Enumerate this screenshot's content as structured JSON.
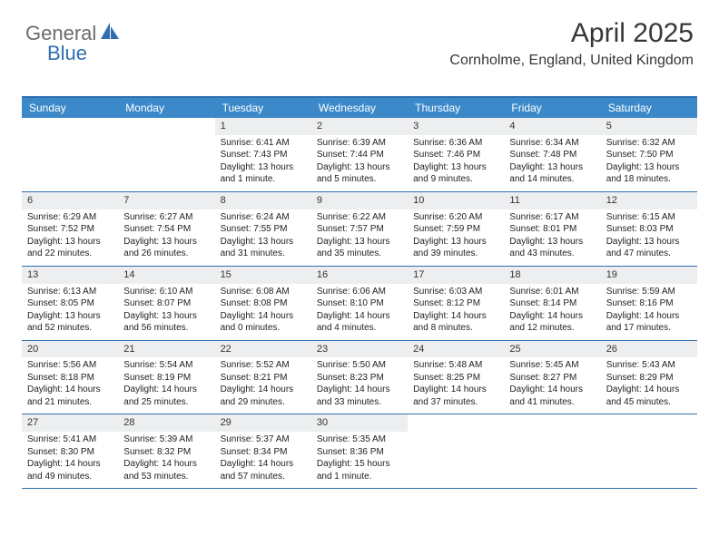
{
  "logo": {
    "part1": "General",
    "part2": "Blue"
  },
  "title": "April 2025",
  "location": "Cornholme, England, United Kingdom",
  "colors": {
    "headerBg": "#3b89c9",
    "borderTop": "#2f6fb0",
    "rowBorder": "#2f6fb0",
    "dayNumBg": "#eceeef",
    "logoGray": "#6b6b6b",
    "logoBlue": "#2f6fb0"
  },
  "dayNames": [
    "Sunday",
    "Monday",
    "Tuesday",
    "Wednesday",
    "Thursday",
    "Friday",
    "Saturday"
  ],
  "weeks": [
    [
      {
        "n": "",
        "empty": true
      },
      {
        "n": "",
        "empty": true
      },
      {
        "n": "1",
        "sunrise": "6:41 AM",
        "sunset": "7:43 PM",
        "daylight": "13 hours and 1 minute."
      },
      {
        "n": "2",
        "sunrise": "6:39 AM",
        "sunset": "7:44 PM",
        "daylight": "13 hours and 5 minutes."
      },
      {
        "n": "3",
        "sunrise": "6:36 AM",
        "sunset": "7:46 PM",
        "daylight": "13 hours and 9 minutes."
      },
      {
        "n": "4",
        "sunrise": "6:34 AM",
        "sunset": "7:48 PM",
        "daylight": "13 hours and 14 minutes."
      },
      {
        "n": "5",
        "sunrise": "6:32 AM",
        "sunset": "7:50 PM",
        "daylight": "13 hours and 18 minutes."
      }
    ],
    [
      {
        "n": "6",
        "sunrise": "6:29 AM",
        "sunset": "7:52 PM",
        "daylight": "13 hours and 22 minutes."
      },
      {
        "n": "7",
        "sunrise": "6:27 AM",
        "sunset": "7:54 PM",
        "daylight": "13 hours and 26 minutes."
      },
      {
        "n": "8",
        "sunrise": "6:24 AM",
        "sunset": "7:55 PM",
        "daylight": "13 hours and 31 minutes."
      },
      {
        "n": "9",
        "sunrise": "6:22 AM",
        "sunset": "7:57 PM",
        "daylight": "13 hours and 35 minutes."
      },
      {
        "n": "10",
        "sunrise": "6:20 AM",
        "sunset": "7:59 PM",
        "daylight": "13 hours and 39 minutes."
      },
      {
        "n": "11",
        "sunrise": "6:17 AM",
        "sunset": "8:01 PM",
        "daylight": "13 hours and 43 minutes."
      },
      {
        "n": "12",
        "sunrise": "6:15 AM",
        "sunset": "8:03 PM",
        "daylight": "13 hours and 47 minutes."
      }
    ],
    [
      {
        "n": "13",
        "sunrise": "6:13 AM",
        "sunset": "8:05 PM",
        "daylight": "13 hours and 52 minutes."
      },
      {
        "n": "14",
        "sunrise": "6:10 AM",
        "sunset": "8:07 PM",
        "daylight": "13 hours and 56 minutes."
      },
      {
        "n": "15",
        "sunrise": "6:08 AM",
        "sunset": "8:08 PM",
        "daylight": "14 hours and 0 minutes."
      },
      {
        "n": "16",
        "sunrise": "6:06 AM",
        "sunset": "8:10 PM",
        "daylight": "14 hours and 4 minutes."
      },
      {
        "n": "17",
        "sunrise": "6:03 AM",
        "sunset": "8:12 PM",
        "daylight": "14 hours and 8 minutes."
      },
      {
        "n": "18",
        "sunrise": "6:01 AM",
        "sunset": "8:14 PM",
        "daylight": "14 hours and 12 minutes."
      },
      {
        "n": "19",
        "sunrise": "5:59 AM",
        "sunset": "8:16 PM",
        "daylight": "14 hours and 17 minutes."
      }
    ],
    [
      {
        "n": "20",
        "sunrise": "5:56 AM",
        "sunset": "8:18 PM",
        "daylight": "14 hours and 21 minutes."
      },
      {
        "n": "21",
        "sunrise": "5:54 AM",
        "sunset": "8:19 PM",
        "daylight": "14 hours and 25 minutes."
      },
      {
        "n": "22",
        "sunrise": "5:52 AM",
        "sunset": "8:21 PM",
        "daylight": "14 hours and 29 minutes."
      },
      {
        "n": "23",
        "sunrise": "5:50 AM",
        "sunset": "8:23 PM",
        "daylight": "14 hours and 33 minutes."
      },
      {
        "n": "24",
        "sunrise": "5:48 AM",
        "sunset": "8:25 PM",
        "daylight": "14 hours and 37 minutes."
      },
      {
        "n": "25",
        "sunrise": "5:45 AM",
        "sunset": "8:27 PM",
        "daylight": "14 hours and 41 minutes."
      },
      {
        "n": "26",
        "sunrise": "5:43 AM",
        "sunset": "8:29 PM",
        "daylight": "14 hours and 45 minutes."
      }
    ],
    [
      {
        "n": "27",
        "sunrise": "5:41 AM",
        "sunset": "8:30 PM",
        "daylight": "14 hours and 49 minutes."
      },
      {
        "n": "28",
        "sunrise": "5:39 AM",
        "sunset": "8:32 PM",
        "daylight": "14 hours and 53 minutes."
      },
      {
        "n": "29",
        "sunrise": "5:37 AM",
        "sunset": "8:34 PM",
        "daylight": "14 hours and 57 minutes."
      },
      {
        "n": "30",
        "sunrise": "5:35 AM",
        "sunset": "8:36 PM",
        "daylight": "15 hours and 1 minute."
      },
      {
        "n": "",
        "empty": true
      },
      {
        "n": "",
        "empty": true
      },
      {
        "n": "",
        "empty": true
      }
    ]
  ],
  "labels": {
    "sunrise": "Sunrise:",
    "sunset": "Sunset:",
    "daylight": "Daylight:"
  }
}
